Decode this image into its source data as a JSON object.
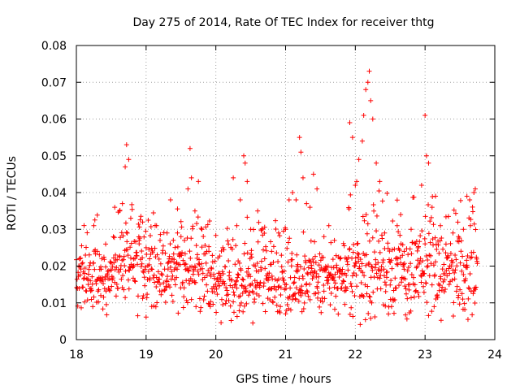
{
  "chart_data": {
    "type": "scatter",
    "title": "Day 275 of 2014, Rate Of TEC Index for receiver thtg",
    "xlabel": "GPS time / hours",
    "ylabel": "ROTI / TECUs",
    "xlim": [
      18,
      24
    ],
    "ylim": [
      0,
      0.08
    ],
    "grid": true,
    "x_ticks": [
      "18",
      "19",
      "20",
      "21",
      "22",
      "23",
      "24"
    ],
    "y_ticks": [
      "0",
      "0.01",
      "0.02",
      "0.03",
      "0.04",
      "0.05",
      "0.06",
      "0.07",
      "0.08"
    ],
    "marker": "+",
    "color": "#ff0000",
    "series": [
      {
        "name": "ROTI",
        "x": [
          18.05,
          18.12,
          18.2,
          18.25,
          18.3,
          18.35,
          18.42,
          18.5,
          18.55,
          18.62,
          18.66,
          18.7,
          18.72,
          18.75,
          18.78,
          18.82,
          18.9,
          18.95,
          19.0,
          19.05,
          19.08,
          19.15,
          19.2,
          19.3,
          19.35,
          19.4,
          19.45,
          19.5,
          19.55,
          19.6,
          19.63,
          19.65,
          19.7,
          19.75,
          19.8,
          19.9,
          19.95,
          20.05,
          20.1,
          20.18,
          20.25,
          20.3,
          20.35,
          20.4,
          20.42,
          20.45,
          20.5,
          20.6,
          20.65,
          20.7,
          20.8,
          20.9,
          21.0,
          21.05,
          21.1,
          21.15,
          21.2,
          21.22,
          21.25,
          21.3,
          21.35,
          21.4,
          21.45,
          21.55,
          21.62,
          21.7,
          21.78,
          21.85,
          21.92,
          21.96,
          22.0,
          22.02,
          22.05,
          22.1,
          22.12,
          22.15,
          22.18,
          22.2,
          22.22,
          22.25,
          22.3,
          22.35,
          22.42,
          22.5,
          22.6,
          22.65,
          22.7,
          22.8,
          22.9,
          22.95,
          23.0,
          23.02,
          23.05,
          23.1,
          23.15,
          23.22,
          23.3,
          23.4,
          23.48,
          23.55,
          23.6,
          23.65,
          23.7,
          23.72
        ],
        "y": [
          0.022,
          0.018,
          0.016,
          0.031,
          0.024,
          0.012,
          0.026,
          0.019,
          0.036,
          0.035,
          0.037,
          0.047,
          0.053,
          0.049,
          0.033,
          0.02,
          0.027,
          0.032,
          0.025,
          0.022,
          0.009,
          0.031,
          0.027,
          0.029,
          0.038,
          0.021,
          0.029,
          0.028,
          0.027,
          0.041,
          0.052,
          0.044,
          0.035,
          0.043,
          0.03,
          0.024,
          0.013,
          0.018,
          0.025,
          0.026,
          0.044,
          0.031,
          0.038,
          0.05,
          0.048,
          0.043,
          0.03,
          0.035,
          0.019,
          0.022,
          0.024,
          0.029,
          0.03,
          0.038,
          0.04,
          0.038,
          0.055,
          0.051,
          0.044,
          0.037,
          0.036,
          0.045,
          0.041,
          0.028,
          0.031,
          0.027,
          0.022,
          0.018,
          0.059,
          0.055,
          0.042,
          0.043,
          0.049,
          0.054,
          0.061,
          0.068,
          0.07,
          0.073,
          0.065,
          0.06,
          0.048,
          0.043,
          0.029,
          0.021,
          0.031,
          0.034,
          0.024,
          0.03,
          0.025,
          0.042,
          0.061,
          0.05,
          0.048,
          0.036,
          0.039,
          0.031,
          0.026,
          0.029,
          0.028,
          0.03,
          0.039,
          0.031,
          0.04,
          0.041
        ],
        "background": {
          "x_start": 18.0,
          "x_end": 23.75,
          "x_step": 0.005,
          "y_low": 0.005,
          "y_high": 0.028,
          "bands": [
            {
              "x_start": 18.0,
              "x_end": 18.6,
              "y_low": 0.008,
              "y_high": 0.027
            },
            {
              "x_start": 18.6,
              "x_end": 19.0,
              "y_low": 0.008,
              "y_high": 0.032
            },
            {
              "x_start": 19.0,
              "x_end": 19.9,
              "y_low": 0.008,
              "y_high": 0.03
            },
            {
              "x_start": 19.9,
              "x_end": 21.0,
              "y_low": 0.006,
              "y_high": 0.026
            },
            {
              "x_start": 21.0,
              "x_end": 21.9,
              "y_low": 0.007,
              "y_high": 0.026
            },
            {
              "x_start": 21.9,
              "x_end": 22.5,
              "y_low": 0.005,
              "y_high": 0.033
            },
            {
              "x_start": 22.5,
              "x_end": 23.75,
              "y_low": 0.006,
              "y_high": 0.031
            }
          ]
        }
      }
    ]
  }
}
